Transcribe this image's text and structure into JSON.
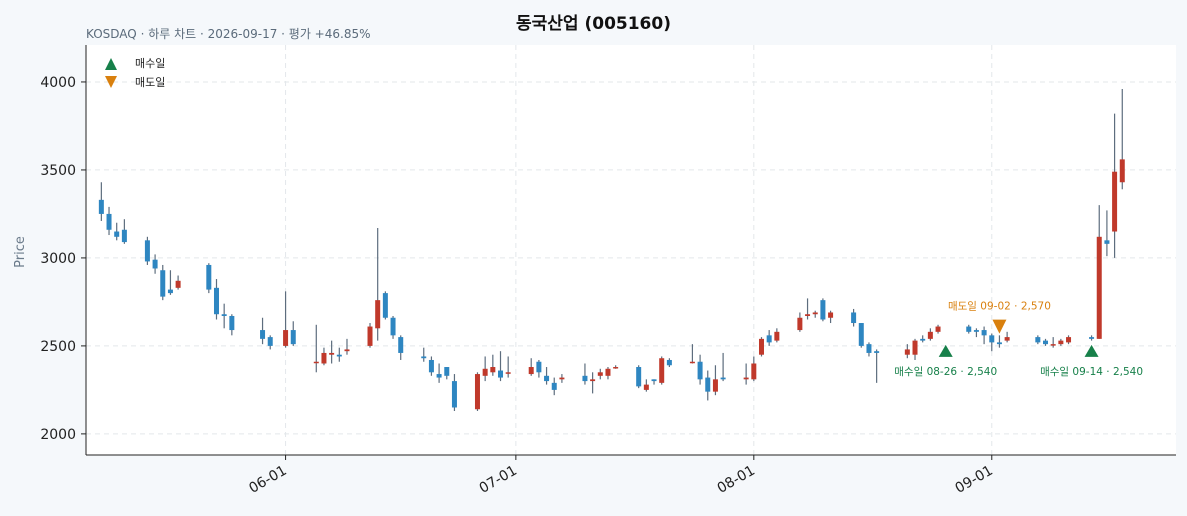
{
  "title": "동국산업 (005160)",
  "subtitle": "KOSDAQ · 하루 차트 · 2026-09-17 · 평가 +46.85%",
  "colors": {
    "up": "#c0392b",
    "down": "#2e86c1",
    "wick": "#5d6d7e",
    "buy": "#17804a",
    "sell": "#d9800e",
    "grid": "#e3e7ea"
  },
  "chart_data": {
    "type": "candlestick",
    "ylabel": "Price",
    "ylim": [
      1880,
      4210
    ],
    "yticks": [
      2000,
      2500,
      3000,
      3500,
      4000
    ],
    "xlim": [
      "2026-05-06",
      "2026-09-25"
    ],
    "xticks": [
      {
        "date": "2026-06-01",
        "label": "06-01"
      },
      {
        "date": "2026-07-01",
        "label": "07-01"
      },
      {
        "date": "2026-08-01",
        "label": "08-01"
      },
      {
        "date": "2026-09-01",
        "label": "09-01"
      }
    ],
    "legend": {
      "placement": "top-left",
      "buy": "매수일",
      "sell": "매도일"
    },
    "candles": [
      [
        "2026-05-08",
        3330,
        3250,
        3430,
        3210
      ],
      [
        "2026-05-09",
        3250,
        3160,
        3290,
        3130
      ],
      [
        "2026-05-10",
        3150,
        3120,
        3200,
        3100
      ],
      [
        "2026-05-11",
        3160,
        3090,
        3220,
        3080
      ],
      [
        "2026-05-14",
        3100,
        2980,
        3120,
        2960
      ],
      [
        "2026-05-15",
        2990,
        2940,
        3020,
        2910
      ],
      [
        "2026-05-16",
        2930,
        2780,
        2960,
        2760
      ],
      [
        "2026-05-17",
        2820,
        2800,
        2930,
        2790
      ],
      [
        "2026-05-18",
        2830,
        2870,
        2900,
        2820
      ],
      [
        "2026-05-22",
        2960,
        2820,
        2970,
        2800
      ],
      [
        "2026-05-23",
        2830,
        2680,
        2880,
        2650
      ],
      [
        "2026-05-24",
        2680,
        2670,
        2740,
        2600
      ],
      [
        "2026-05-25",
        2670,
        2590,
        2680,
        2560
      ],
      [
        "2026-05-29",
        2590,
        2540,
        2660,
        2510
      ],
      [
        "2026-05-30",
        2550,
        2500,
        2560,
        2480
      ],
      [
        "2026-06-01",
        2500,
        2590,
        2810,
        2490
      ],
      [
        "2026-06-02",
        2590,
        2510,
        2640,
        2500
      ],
      [
        "2026-06-05",
        2410,
        2410,
        2620,
        2350
      ],
      [
        "2026-06-06",
        2400,
        2460,
        2490,
        2390
      ],
      [
        "2026-06-07",
        2450,
        2460,
        2530,
        2400
      ],
      [
        "2026-06-08",
        2450,
        2440,
        2490,
        2410
      ],
      [
        "2026-06-09",
        2470,
        2480,
        2540,
        2450
      ],
      [
        "2026-06-12",
        2500,
        2610,
        2630,
        2490
      ],
      [
        "2026-06-13",
        2600,
        2760,
        3170,
        2530
      ],
      [
        "2026-06-14",
        2800,
        2660,
        2810,
        2650
      ],
      [
        "2026-06-15",
        2660,
        2560,
        2670,
        2540
      ],
      [
        "2026-06-16",
        2550,
        2460,
        2560,
        2420
      ],
      [
        "2026-06-19",
        2440,
        2430,
        2490,
        2410
      ],
      [
        "2026-06-20",
        2420,
        2350,
        2440,
        2330
      ],
      [
        "2026-06-21",
        2340,
        2320,
        2400,
        2290
      ],
      [
        "2026-06-22",
        2380,
        2330,
        2380,
        2310
      ],
      [
        "2026-06-23",
        2300,
        2150,
        2340,
        2130
      ],
      [
        "2026-06-26",
        2140,
        2340,
        2350,
        2130
      ],
      [
        "2026-06-27",
        2330,
        2370,
        2440,
        2300
      ],
      [
        "2026-06-28",
        2350,
        2380,
        2450,
        2330
      ],
      [
        "2026-06-29",
        2360,
        2320,
        2470,
        2300
      ],
      [
        "2026-06-30",
        2350,
        2350,
        2440,
        2320
      ],
      [
        "2026-07-03",
        2340,
        2380,
        2430,
        2330
      ],
      [
        "2026-07-04",
        2410,
        2350,
        2420,
        2320
      ],
      [
        "2026-07-05",
        2330,
        2300,
        2380,
        2280
      ],
      [
        "2026-07-06",
        2290,
        2250,
        2320,
        2220
      ],
      [
        "2026-07-07",
        2310,
        2320,
        2340,
        2290
      ],
      [
        "2026-07-10",
        2330,
        2300,
        2400,
        2280
      ],
      [
        "2026-07-11",
        2300,
        2310,
        2350,
        2230
      ],
      [
        "2026-07-12",
        2330,
        2350,
        2370,
        2310
      ],
      [
        "2026-07-13",
        2330,
        2370,
        2380,
        2310
      ],
      [
        "2026-07-14",
        2380,
        2380,
        2390,
        2370
      ],
      [
        "2026-07-17",
        2380,
        2270,
        2390,
        2260
      ],
      [
        "2026-07-18",
        2250,
        2280,
        2310,
        2240
      ],
      [
        "2026-07-19",
        2310,
        2300,
        2310,
        2280
      ],
      [
        "2026-07-20",
        2290,
        2430,
        2440,
        2280
      ],
      [
        "2026-07-21",
        2420,
        2390,
        2430,
        2380
      ],
      [
        "2026-07-24",
        2410,
        2410,
        2510,
        2400
      ],
      [
        "2026-07-25",
        2410,
        2310,
        2450,
        2280
      ],
      [
        "2026-07-26",
        2320,
        2240,
        2360,
        2190
      ],
      [
        "2026-07-27",
        2240,
        2310,
        2390,
        2220
      ],
      [
        "2026-07-28",
        2320,
        2310,
        2460,
        2300
      ],
      [
        "2026-07-31",
        2310,
        2320,
        2400,
        2280
      ],
      [
        "2026-08-01",
        2310,
        2400,
        2440,
        2300
      ],
      [
        "2026-08-02",
        2450,
        2540,
        2550,
        2440
      ],
      [
        "2026-08-03",
        2560,
        2520,
        2590,
        2500
      ],
      [
        "2026-08-04",
        2530,
        2580,
        2600,
        2520
      ],
      [
        "2026-08-07",
        2590,
        2660,
        2690,
        2580
      ],
      [
        "2026-08-08",
        2670,
        2680,
        2770,
        2650
      ],
      [
        "2026-08-09",
        2680,
        2690,
        2700,
        2660
      ],
      [
        "2026-08-10",
        2760,
        2650,
        2770,
        2640
      ],
      [
        "2026-08-11",
        2660,
        2690,
        2700,
        2630
      ],
      [
        "2026-08-14",
        2690,
        2630,
        2710,
        2610
      ],
      [
        "2026-08-15",
        2630,
        2500,
        2630,
        2490
      ],
      [
        "2026-08-16",
        2510,
        2460,
        2520,
        2440
      ],
      [
        "2026-08-17",
        2470,
        2460,
        2480,
        2290
      ],
      [
        "2026-08-21",
        2450,
        2480,
        2510,
        2430
      ],
      [
        "2026-08-22",
        2450,
        2530,
        2540,
        2420
      ],
      [
        "2026-08-23",
        2540,
        2530,
        2560,
        2520
      ],
      [
        "2026-08-24",
        2540,
        2580,
        2600,
        2530
      ],
      [
        "2026-08-25",
        2580,
        2610,
        2620,
        2570
      ],
      [
        "2026-08-29",
        2610,
        2580,
        2620,
        2570
      ],
      [
        "2026-08-30",
        2590,
        2580,
        2600,
        2550
      ],
      [
        "2026-08-31",
        2590,
        2560,
        2610,
        2510
      ],
      [
        "2026-09-01",
        2560,
        2520,
        2570,
        2470
      ],
      [
        "2026-09-02",
        2520,
        2510,
        2560,
        2490
      ],
      [
        "2026-09-03",
        2530,
        2550,
        2580,
        2520
      ],
      [
        "2026-09-07",
        2550,
        2520,
        2560,
        2510
      ],
      [
        "2026-09-08",
        2530,
        2510,
        2540,
        2500
      ],
      [
        "2026-09-09",
        2510,
        2510,
        2550,
        2490
      ],
      [
        "2026-09-10",
        2510,
        2530,
        2540,
        2500
      ],
      [
        "2026-09-11",
        2520,
        2550,
        2560,
        2510
      ],
      [
        "2026-09-14",
        2550,
        2540,
        2560,
        2530
      ],
      [
        "2026-09-15",
        2540,
        3120,
        3300,
        2540
      ],
      [
        "2026-09-16",
        3100,
        3080,
        3270,
        3010
      ],
      [
        "2026-09-17",
        3150,
        3490,
        3820,
        3000
      ],
      [
        "2026-09-18",
        3430,
        3560,
        3960,
        3390
      ]
    ],
    "annotations": [
      {
        "kind": "buy",
        "date": "2026-08-26",
        "price": 2540,
        "label": "매수일 08-26 · 2,540"
      },
      {
        "kind": "sell",
        "date": "2026-09-02",
        "price": 2570,
        "label": "매도일 09-02 · 2,570"
      },
      {
        "kind": "buy",
        "date": "2026-09-14",
        "price": 2540,
        "label": "매수일 09-14 · 2,540"
      }
    ]
  }
}
